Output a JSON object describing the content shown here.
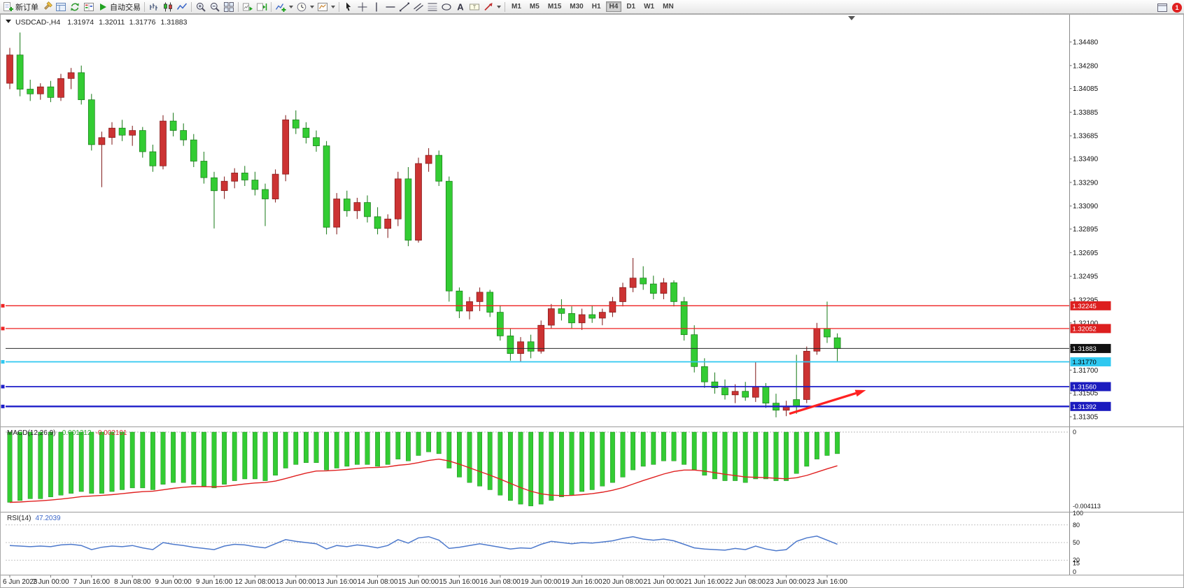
{
  "toolbar": {
    "badge": "1",
    "active_timeframe": "H4",
    "groups": [
      {
        "name": "trade",
        "items": [
          {
            "name": "new-order-button",
            "icon": "new-order",
            "label": "新订单"
          },
          {
            "name": "metaeditor-button",
            "icon": "metaeditor"
          },
          {
            "name": "profiles-button",
            "icon": "profiles"
          },
          {
            "name": "refresh-button",
            "icon": "refresh"
          },
          {
            "name": "market-watch-button",
            "icon": "market-watch"
          },
          {
            "name": "autotrading-button",
            "icon": "play",
            "label": "自动交易"
          }
        ]
      },
      {
        "name": "chart-type",
        "items": [
          {
            "name": "bar-chart-button",
            "icon": "bars"
          },
          {
            "name": "candle-chart-button",
            "icon": "candles"
          },
          {
            "name": "line-chart-button",
            "icon": "line"
          }
        ]
      },
      {
        "name": "zoom",
        "items": [
          {
            "name": "zoom-in-button",
            "icon": "zoom-in"
          },
          {
            "name": "zoom-out-button",
            "icon": "zoom-out"
          },
          {
            "name": "tile-windows-button",
            "icon": "tile"
          }
        ]
      },
      {
        "name": "scroll",
        "items": [
          {
            "name": "auto-scroll-button",
            "icon": "auto-scroll"
          },
          {
            "name": "chart-shift-button",
            "icon": "chart-shift"
          }
        ]
      },
      {
        "name": "insert",
        "items": [
          {
            "name": "indicators-button",
            "icon": "indicators",
            "dropdown": true
          },
          {
            "name": "periods-button",
            "icon": "clock",
            "dropdown": true
          },
          {
            "name": "templates-button",
            "icon": "template",
            "dropdown": true
          }
        ]
      },
      {
        "name": "objects",
        "items": [
          {
            "name": "cursor-button",
            "icon": "cursor"
          },
          {
            "name": "crosshair-button",
            "icon": "crosshair"
          },
          {
            "name": "vertical-line-button",
            "icon": "vline"
          },
          {
            "name": "horizontal-line-button",
            "icon": "hline"
          },
          {
            "name": "trendline-button",
            "icon": "trend"
          },
          {
            "name": "channel-button",
            "icon": "channel"
          },
          {
            "name": "fibonacci-button",
            "icon": "fibo"
          },
          {
            "name": "shapes-button",
            "icon": "shapes"
          },
          {
            "name": "text-button",
            "icon": "textA"
          },
          {
            "name": "label-button",
            "icon": "label"
          },
          {
            "name": "arrows-button",
            "icon": "arrowObj",
            "dropdown": true
          }
        ]
      },
      {
        "name": "timeframes",
        "type": "timeframes",
        "items": [
          {
            "name": "tf-m1",
            "label": "M1"
          },
          {
            "name": "tf-m5",
            "label": "M5"
          },
          {
            "name": "tf-m15",
            "label": "M15"
          },
          {
            "name": "tf-m30",
            "label": "M30"
          },
          {
            "name": "tf-h1",
            "label": "H1"
          },
          {
            "name": "tf-h4",
            "label": "H4"
          },
          {
            "name": "tf-d1",
            "label": "D1"
          },
          {
            "name": "tf-w1",
            "label": "W1"
          },
          {
            "name": "tf-mn",
            "label": "MN"
          }
        ]
      }
    ]
  },
  "chart_data": {
    "type": "candlestick",
    "title": "USDCAD-,H4",
    "ohlc_display": {
      "open": "1.31974",
      "high": "1.32011",
      "low": "1.31776",
      "close": "1.31883"
    },
    "visible_range": {
      "max": 1.347,
      "min": 1.3125
    },
    "price_axis": {
      "labels": [
        "1.34480",
        "1.34280",
        "1.34085",
        "1.33885",
        "1.33685",
        "1.33490",
        "1.33290",
        "1.33090",
        "1.32895",
        "1.32695",
        "1.32495",
        "1.32295",
        "1.32100",
        "1.31900",
        "1.31700",
        "1.31505",
        "1.31305"
      ]
    },
    "time_axis": {
      "bars_per_label": 4,
      "labels": [
        "6 Jun 2023",
        "7 Jun 00:00",
        "7 Jun 16:00",
        "8 Jun 08:00",
        "9 Jun 00:00",
        "9 Jun 16:00",
        "12 Jun 08:00",
        "13 Jun 00:00",
        "13 Jun 16:00",
        "14 Jun 08:00",
        "15 Jun 00:00",
        "15 Jun 16:00",
        "16 Jun 08:00",
        "19 Jun 00:00",
        "19 Jun 16:00",
        "20 Jun 08:00",
        "21 Jun 00:00",
        "21 Jun 16:00",
        "22 Jun 08:00",
        "23 Jun 00:00",
        "23 Jun 16:00"
      ]
    },
    "candles": [
      [
        1.3413,
        1.3443,
        1.3408,
        1.3437
      ],
      [
        1.3437,
        1.3456,
        1.3402,
        1.3408
      ],
      [
        1.3408,
        1.3416,
        1.3398,
        1.3404
      ],
      [
        1.3404,
        1.3413,
        1.3399,
        1.341
      ],
      [
        1.341,
        1.3415,
        1.3397,
        1.3401
      ],
      [
        1.3401,
        1.3421,
        1.3398,
        1.3417
      ],
      [
        1.3417,
        1.3426,
        1.3408,
        1.3422
      ],
      [
        1.3422,
        1.3428,
        1.3395,
        1.3399
      ],
      [
        1.3399,
        1.3404,
        1.3356,
        1.3361
      ],
      [
        1.3361,
        1.3372,
        1.3325,
        1.3367
      ],
      [
        1.3367,
        1.338,
        1.3361,
        1.3375
      ],
      [
        1.3375,
        1.3382,
        1.3364,
        1.3369
      ],
      [
        1.3369,
        1.3377,
        1.336,
        1.3373
      ],
      [
        1.3373,
        1.3376,
        1.335,
        1.3355
      ],
      [
        1.3355,
        1.3361,
        1.3338,
        1.3343
      ],
      [
        1.3343,
        1.3386,
        1.334,
        1.3381
      ],
      [
        1.3381,
        1.3388,
        1.3368,
        1.3373
      ],
      [
        1.3373,
        1.3379,
        1.336,
        1.3365
      ],
      [
        1.3365,
        1.337,
        1.3342,
        1.3347
      ],
      [
        1.3347,
        1.3355,
        1.3328,
        1.3333
      ],
      [
        1.3333,
        1.3338,
        1.329,
        1.3322
      ],
      [
        1.3322,
        1.3334,
        1.3315,
        1.333
      ],
      [
        1.333,
        1.3341,
        1.3324,
        1.3337
      ],
      [
        1.3337,
        1.3343,
        1.3326,
        1.3331
      ],
      [
        1.3331,
        1.3338,
        1.3318,
        1.3323
      ],
      [
        1.3323,
        1.3328,
        1.3292,
        1.3315
      ],
      [
        1.3315,
        1.334,
        1.3312,
        1.3336
      ],
      [
        1.3336,
        1.3386,
        1.333,
        1.3382
      ],
      [
        1.3382,
        1.339,
        1.337,
        1.3375
      ],
      [
        1.3375,
        1.338,
        1.3362,
        1.3367
      ],
      [
        1.3367,
        1.3373,
        1.3355,
        1.336
      ],
      [
        1.336,
        1.3364,
        1.3285,
        1.3291
      ],
      [
        1.3291,
        1.332,
        1.3285,
        1.3315
      ],
      [
        1.3315,
        1.3322,
        1.33,
        1.3305
      ],
      [
        1.3305,
        1.3316,
        1.3298,
        1.3312
      ],
      [
        1.3312,
        1.3318,
        1.3295,
        1.33
      ],
      [
        1.33,
        1.3308,
        1.3285,
        1.329
      ],
      [
        1.329,
        1.3302,
        1.3282,
        1.3298
      ],
      [
        1.3298,
        1.3338,
        1.3292,
        1.3332
      ],
      [
        1.3332,
        1.3342,
        1.3275,
        1.328
      ],
      [
        1.328,
        1.335,
        1.3278,
        1.3345
      ],
      [
        1.3345,
        1.3358,
        1.3338,
        1.3352
      ],
      [
        1.3352,
        1.3356,
        1.3326,
        1.333
      ],
      [
        1.333,
        1.3334,
        1.3228,
        1.3237
      ],
      [
        1.3237,
        1.324,
        1.3214,
        1.322
      ],
      [
        1.322,
        1.3232,
        1.3213,
        1.3228
      ],
      [
        1.3228,
        1.324,
        1.322,
        1.3236
      ],
      [
        1.3236,
        1.3238,
        1.3215,
        1.3219
      ],
      [
        1.3219,
        1.3225,
        1.3195,
        1.3199
      ],
      [
        1.3199,
        1.3205,
        1.3178,
        1.3184
      ],
      [
        1.3184,
        1.3198,
        1.3177,
        1.3194
      ],
      [
        1.3194,
        1.32,
        1.318,
        1.3186
      ],
      [
        1.3186,
        1.3212,
        1.3184,
        1.3208
      ],
      [
        1.3208,
        1.3226,
        1.3205,
        1.3222
      ],
      [
        1.3222,
        1.323,
        1.3212,
        1.3218
      ],
      [
        1.3218,
        1.3224,
        1.3205,
        1.321
      ],
      [
        1.321,
        1.3222,
        1.3204,
        1.3217
      ],
      [
        1.3217,
        1.3225,
        1.321,
        1.3214
      ],
      [
        1.3214,
        1.3222,
        1.3208,
        1.3219
      ],
      [
        1.3219,
        1.3232,
        1.3215,
        1.3228
      ],
      [
        1.3228,
        1.3244,
        1.3224,
        1.324
      ],
      [
        1.324,
        1.3265,
        1.3236,
        1.3248
      ],
      [
        1.3248,
        1.3258,
        1.3238,
        1.3243
      ],
      [
        1.3243,
        1.325,
        1.323,
        1.3235
      ],
      [
        1.3235,
        1.3248,
        1.323,
        1.3244
      ],
      [
        1.3244,
        1.3246,
        1.3224,
        1.3228
      ],
      [
        1.3228,
        1.3232,
        1.3195,
        1.32
      ],
      [
        1.32,
        1.3208,
        1.3168,
        1.3173
      ],
      [
        1.3173,
        1.318,
        1.3155,
        1.316
      ],
      [
        1.316,
        1.3168,
        1.315,
        1.3155
      ],
      [
        1.3155,
        1.3162,
        1.3145,
        1.3149
      ],
      [
        1.3149,
        1.3158,
        1.3142,
        1.3152
      ],
      [
        1.3152,
        1.316,
        1.3144,
        1.3147
      ],
      [
        1.3147,
        1.3177,
        1.3143,
        1.3156
      ],
      [
        1.3156,
        1.3159,
        1.3138,
        1.3142
      ],
      [
        1.3142,
        1.315,
        1.313,
        1.3136
      ],
      [
        1.3136,
        1.3144,
        1.3131,
        1.3139
      ],
      [
        1.3145,
        1.3183,
        1.3133,
        1.3139
      ],
      [
        1.3145,
        1.319,
        1.3142,
        1.3186
      ],
      [
        1.3186,
        1.321,
        1.3183,
        1.3205
      ],
      [
        1.3205,
        1.3228,
        1.3193,
        1.3198
      ],
      [
        1.31974,
        1.32011,
        1.31776,
        1.31883
      ]
    ],
    "horizontal_lines": [
      {
        "price": 1.32245,
        "label": "1.32245",
        "color": "#ee2222",
        "width": 1.3,
        "tag_bg": "#dd1f1f",
        "tag_fg": "#ffffff"
      },
      {
        "price": 1.32052,
        "label": "1.32052",
        "color": "#ee2222",
        "width": 1.3,
        "tag_bg": "#dd1f1f",
        "tag_fg": "#ffffff"
      },
      {
        "price": 1.31883,
        "label": "1.31883",
        "color": "#2a2a2a",
        "width": 1,
        "tag_bg": "#111111",
        "tag_fg": "#ffffff",
        "no_handle": true
      },
      {
        "price": 1.3177,
        "label": "1.31770",
        "color": "#2fc8f0",
        "width": 1.7,
        "tag_bg": "#2fc8f0",
        "tag_fg": "#000000"
      },
      {
        "price": 1.3156,
        "label": "1.31560",
        "color": "#1d1dc8",
        "width": 1.7,
        "tag_bg": "#1b1bbe",
        "tag_fg": "#ffffff"
      },
      {
        "price": 1.31392,
        "label": "1.31392",
        "color": "#1d1dc8",
        "width": 2.4,
        "tag_bg": "#1b1bbe",
        "tag_fg": "#ffffff"
      }
    ],
    "arrow_annotation": {
      "from_bar": 76.3,
      "from_price": 1.3133,
      "to_bar": 83.8,
      "to_price": 1.3153,
      "color": "#ff2121"
    },
    "indicators": {
      "macd": {
        "label": "MACD(12,26,9)",
        "value_main": "-0.001212",
        "value_signal": "-0.002101",
        "axis_max": "0",
        "axis_min": "-0.004113",
        "values": [
          -0.0039,
          -0.0038,
          -0.0037,
          -0.0037,
          -0.0036,
          -0.0035,
          -0.0034,
          -0.0033,
          -0.0034,
          -0.0034,
          -0.0033,
          -0.0032,
          -0.0031,
          -0.0031,
          -0.0032,
          -0.0029,
          -0.0028,
          -0.0028,
          -0.0029,
          -0.003,
          -0.0031,
          -0.0029,
          -0.0027,
          -0.0026,
          -0.0026,
          -0.0027,
          -0.0024,
          -0.002,
          -0.0018,
          -0.0017,
          -0.0017,
          -0.0021,
          -0.002,
          -0.0019,
          -0.0018,
          -0.0018,
          -0.0019,
          -0.0018,
          -0.0015,
          -0.0016,
          -0.0013,
          -0.0011,
          -0.0012,
          -0.002,
          -0.0025,
          -0.0028,
          -0.003,
          -0.0032,
          -0.0035,
          -0.0038,
          -0.004,
          -0.0041,
          -0.004,
          -0.0038,
          -0.0036,
          -0.0035,
          -0.0033,
          -0.0032,
          -0.003,
          -0.0028,
          -0.0025,
          -0.0021,
          -0.0019,
          -0.0018,
          -0.0016,
          -0.0016,
          -0.0018,
          -0.0021,
          -0.0024,
          -0.0026,
          -0.0027,
          -0.0027,
          -0.0028,
          -0.0026,
          -0.0026,
          -0.0027,
          -0.0027,
          -0.0023,
          -0.0019,
          -0.0015,
          -0.0013,
          -0.0012
        ]
      },
      "rsi": {
        "label": "RSI(14)",
        "value": "47.2039",
        "levels": [
          80,
          50,
          20
        ],
        "axis_labels": [
          "100",
          "80",
          "50",
          "20",
          "15",
          "0"
        ],
        "values": [
          45,
          44,
          43,
          44,
          43,
          46,
          47,
          45,
          38,
          42,
          44,
          43,
          45,
          41,
          38,
          50,
          47,
          45,
          42,
          40,
          38,
          44,
          47,
          46,
          43,
          41,
          48,
          55,
          52,
          50,
          48,
          39,
          45,
          43,
          46,
          44,
          41,
          45,
          55,
          49,
          58,
          60,
          54,
          40,
          42,
          45,
          48,
          45,
          42,
          39,
          41,
          40,
          47,
          52,
          50,
          48,
          50,
          49,
          51,
          53,
          57,
          60,
          56,
          54,
          56,
          53,
          47,
          41,
          39,
          38,
          37,
          40,
          38,
          44,
          39,
          36,
          38,
          52,
          58,
          61,
          54,
          47.2
        ]
      }
    },
    "colors": {
      "bull": "#cc3333",
      "bull_border": "#7e1515",
      "bear": "#33cc33",
      "bear_border": "#147814",
      "macd_hist": "#33cc33",
      "macd_signal": "#e02020",
      "rsi_line": "#4d79cc",
      "arrow": "#ff2121"
    }
  }
}
